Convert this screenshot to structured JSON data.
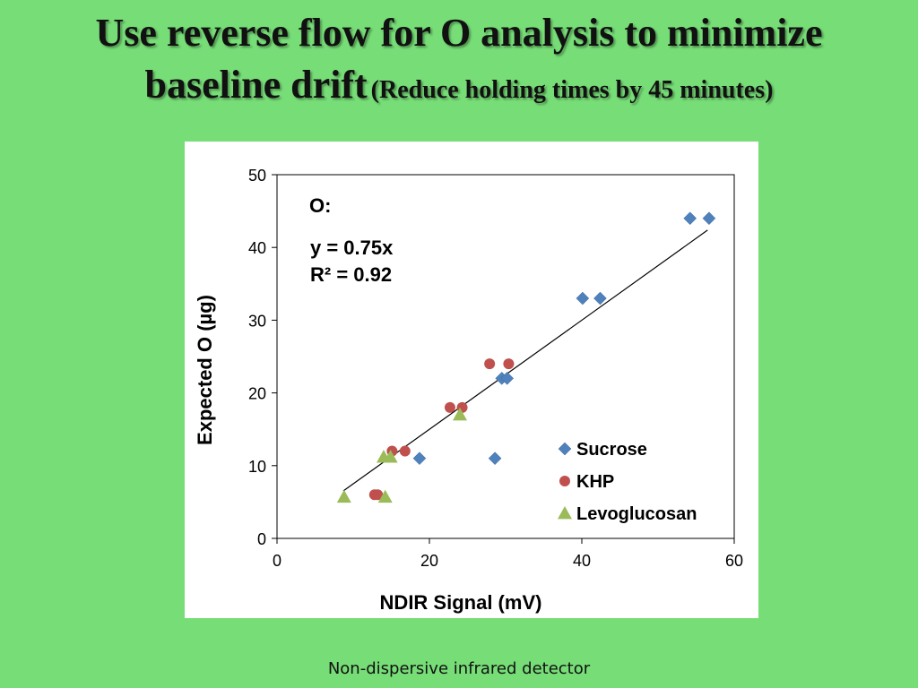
{
  "slide": {
    "title_line1": "Use reverse flow for O analysis to minimize",
    "title_line2": "baseline drift",
    "title_sub": "(Reduce holding times by 45 minutes)",
    "footnote": "Non-dispersive infrared detector"
  },
  "chart_data": {
    "type": "scatter",
    "xlabel": "NDIR Signal (mV)",
    "ylabel": "Expected O (µg)",
    "xlim": [
      0,
      60
    ],
    "ylim": [
      0,
      50
    ],
    "xticks": [
      0,
      20,
      40,
      60
    ],
    "yticks": [
      0,
      10,
      20,
      30,
      40,
      50
    ],
    "grid": false,
    "legend_position": "bottom-right",
    "annotation": {
      "label": "O:",
      "equation": "y = 0.75x",
      "r2": "R² = 0.92"
    },
    "trendline": {
      "slope": 0.75,
      "x_range": [
        8.7,
        56.5
      ]
    },
    "series": [
      {
        "name": "Sucrose",
        "marker": "diamond",
        "color": "#4f81bd",
        "points": [
          [
            54.2,
            44
          ],
          [
            56.7,
            44
          ],
          [
            40.1,
            33
          ],
          [
            42.4,
            33
          ],
          [
            29.5,
            22
          ],
          [
            30.2,
            22
          ],
          [
            18.7,
            11
          ],
          [
            28.6,
            11
          ]
        ]
      },
      {
        "name": "KHP",
        "marker": "circle",
        "color": "#c0504d",
        "points": [
          [
            27.9,
            24
          ],
          [
            30.4,
            24
          ],
          [
            22.7,
            18
          ],
          [
            24.3,
            18
          ],
          [
            15.1,
            12
          ],
          [
            16.8,
            12
          ],
          [
            12.8,
            6
          ],
          [
            13.2,
            6
          ]
        ]
      },
      {
        "name": "Levoglucosan",
        "marker": "triangle",
        "color": "#9bbb59",
        "points": [
          [
            24.0,
            17
          ],
          [
            14.0,
            11.2
          ],
          [
            14.9,
            11.2
          ],
          [
            8.8,
            5.7
          ],
          [
            14.2,
            5.7
          ]
        ]
      }
    ]
  }
}
